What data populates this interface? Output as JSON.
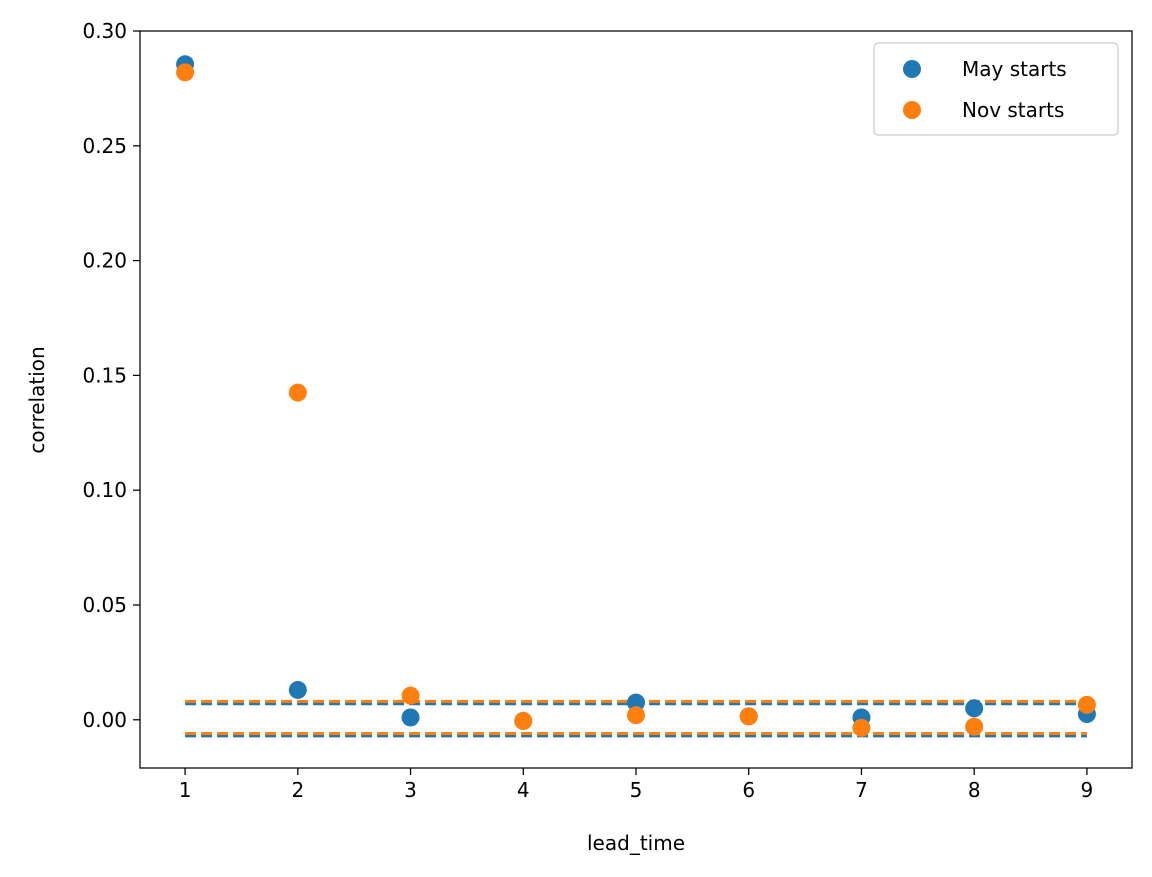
{
  "chart_data": {
    "type": "scatter",
    "title": "",
    "xlabel": "lead_time",
    "ylabel": "correlation",
    "xlim": [
      0.6,
      9.4
    ],
    "ylim": [
      -0.021,
      0.3
    ],
    "xticks": [
      1,
      2,
      3,
      4,
      5,
      6,
      7,
      8,
      9
    ],
    "xtick_labels": [
      "1",
      "2",
      "3",
      "4",
      "5",
      "6",
      "7",
      "8",
      "9"
    ],
    "yticks": [
      0.0,
      0.05,
      0.1,
      0.15,
      0.2,
      0.25,
      0.3
    ],
    "ytick_labels": [
      "0.00",
      "0.05",
      "0.10",
      "0.15",
      "0.20",
      "0.25",
      "0.30"
    ],
    "grid": false,
    "legend_position": "top-right",
    "series": [
      {
        "name": "May starts",
        "color": "#1f77b4",
        "marker": "circle",
        "x": [
          1,
          2,
          3,
          4,
          5,
          6,
          7,
          8,
          9
        ],
        "y": [
          0.2855,
          0.013,
          0.001,
          -0.0005,
          0.0075,
          0.0015,
          0.001,
          0.005,
          0.0025
        ]
      },
      {
        "name": "Nov starts",
        "color": "#ff7f0e",
        "marker": "circle",
        "x": [
          1,
          2,
          3,
          4,
          5,
          6,
          7,
          8,
          9
        ],
        "y": [
          0.282,
          0.1425,
          0.0105,
          -0.0005,
          0.002,
          0.0015,
          -0.0035,
          -0.003,
          0.0065
        ]
      }
    ],
    "reference_lines": [
      {
        "name": "May upper bound",
        "color": "#1f77b4",
        "style": "dashed",
        "y": 0.007,
        "x_range": [
          1,
          9
        ]
      },
      {
        "name": "May lower bound",
        "color": "#1f77b4",
        "style": "dashed",
        "y": -0.007,
        "x_range": [
          1,
          9
        ]
      },
      {
        "name": "Nov upper bound",
        "color": "#ff7f0e",
        "style": "dashed",
        "y": 0.008,
        "x_range": [
          1,
          9
        ]
      },
      {
        "name": "Nov lower bound",
        "color": "#ff7f0e",
        "style": "dashed",
        "y": -0.006,
        "x_range": [
          1,
          9
        ]
      }
    ]
  }
}
